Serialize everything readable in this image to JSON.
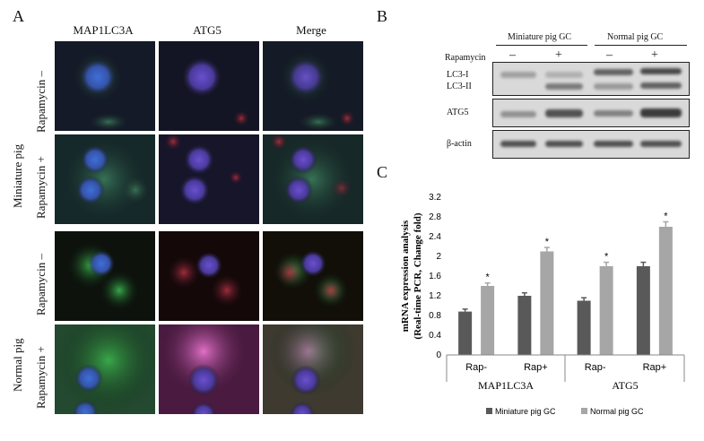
{
  "panel_a": {
    "letter": "A",
    "columns": [
      "MAP1LC3A",
      "ATG5",
      "Merge"
    ],
    "groups": [
      "Miniature pig",
      "Normal pig"
    ],
    "row_labels": [
      "Rapamycin –",
      "Rapamycin +",
      "Rapamycin –",
      "Rapamycin +"
    ]
  },
  "panel_b": {
    "letter": "B",
    "groups": [
      "Miniature pig GC",
      "Normal pig GC"
    ],
    "treatment_label": "Rapamycin",
    "treatment_signs": [
      "–",
      "+",
      "–",
      "+"
    ],
    "blot_labels": [
      "LC3-I",
      "LC3-II",
      "ATG5",
      "β-actin"
    ]
  },
  "panel_c": {
    "letter": "C"
  },
  "chart_data": {
    "type": "bar",
    "title": "",
    "ylabel_line1": "mRNA expression analysis",
    "ylabel_line2": "(Real-time PCR, Change fold)",
    "ylim": [
      0,
      3.2
    ],
    "yticks": [
      "0",
      "0.4",
      "0.8",
      "1.2",
      "1.6",
      "2",
      "2.4",
      "2.8",
      "3.2"
    ],
    "categories": [
      "Rap-",
      "Rap+",
      "Rap-",
      "Rap+"
    ],
    "groups": [
      "MAP1LC3A",
      "ATG5"
    ],
    "series": [
      {
        "name": "Miniature pig GC",
        "color": "#595959",
        "values": [
          0.88,
          1.2,
          1.1,
          1.8
        ],
        "errors": [
          0.05,
          0.06,
          0.06,
          0.08
        ]
      },
      {
        "name": "Normal pig GC",
        "color": "#a6a6a6",
        "values": [
          1.4,
          2.1,
          1.8,
          2.6
        ],
        "errors": [
          0.06,
          0.08,
          0.08,
          0.1
        ]
      }
    ],
    "significance": [
      "*",
      "*",
      "*",
      "*"
    ],
    "legend_position": "bottom"
  }
}
